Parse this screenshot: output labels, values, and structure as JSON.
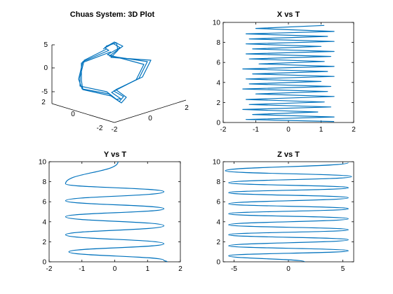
{
  "colors": {
    "series": "#0072BD",
    "axis": "#000000",
    "background": "#ffffff"
  },
  "chart_data": [
    {
      "type": "line3d",
      "title": "Chuas System: 3D Plot",
      "grid": false,
      "x_ticks": [
        "-2",
        "0",
        "2"
      ],
      "y_ticks": [
        "2",
        "0",
        "-2"
      ],
      "z_ticks": [
        "5",
        "0",
        "-5"
      ],
      "trajectory_note_xyz": [
        [
          1.4,
          -1.2,
          5.6
        ],
        [
          0.9,
          -1.5,
          5.0
        ],
        [
          -0.3,
          -0.2,
          5.4
        ],
        [
          0.3,
          1.3,
          2.5
        ],
        [
          0.6,
          2.2,
          -0.5
        ],
        [
          1.3,
          -0.4,
          -4.6
        ],
        [
          1.7,
          -2.0,
          -5.0
        ],
        [
          2.1,
          -1.8,
          -4.2
        ],
        [
          0.6,
          -2.4,
          -0.5
        ],
        [
          -0.3,
          -1.4,
          0.6
        ],
        [
          1.4,
          -1.2,
          5.6
        ]
      ]
    },
    {
      "type": "line",
      "title": "X vs T",
      "xlim": [
        -2,
        2
      ],
      "ylim": [
        0,
        10
      ],
      "x_ticks": [
        "-2",
        "-1",
        "0",
        "1",
        "2"
      ],
      "y_ticks": [
        "0",
        "2",
        "4",
        "6",
        "8",
        "10"
      ],
      "series": [
        {
          "x": [
            1.4,
            -1.3,
            1.4,
            -1.1,
            0.9,
            -1.4,
            1.3,
            -1.2,
            1.1,
            -1.3,
            1.4,
            -1.0,
            1.2,
            -1.4,
            1.3,
            -1.2,
            1.0,
            -1.3,
            1.4,
            -1.1,
            1.2,
            -1.4,
            1.4,
            -0.9,
            1.1,
            -1.2,
            1.3,
            -1.3,
            1.4,
            -1.1,
            1.0,
            -1.3,
            1.4,
            -1.2,
            1.2,
            -1.3,
            1.4,
            -1.0,
            1.1
          ],
          "y": [
            0.1,
            0.3,
            0.55,
            0.8,
            1.05,
            1.3,
            1.55,
            1.8,
            2.05,
            2.3,
            2.6,
            2.85,
            3.1,
            3.35,
            3.6,
            3.85,
            4.1,
            4.35,
            4.6,
            4.85,
            5.1,
            5.35,
            5.6,
            5.85,
            6.1,
            6.35,
            6.6,
            6.85,
            7.1,
            7.35,
            7.6,
            7.85,
            8.1,
            8.35,
            8.6,
            8.85,
            9.1,
            9.4,
            9.7
          ]
        }
      ]
    },
    {
      "type": "line",
      "title": "Y vs T",
      "xlim": [
        -2,
        2
      ],
      "ylim": [
        0,
        10
      ],
      "x_ticks": [
        "-2",
        "-1",
        "0",
        "1",
        "2"
      ],
      "y_ticks": [
        "0",
        "2",
        "4",
        "6",
        "8",
        "10"
      ],
      "series": [
        {
          "x": [
            1.6,
            1.5,
            -1.4,
            1.5,
            -1.5,
            1.5,
            -1.5,
            1.5,
            -1.5,
            1.5,
            -1.5,
            0.1
          ],
          "y": [
            0.0,
            0.15,
            1.0,
            1.8,
            2.7,
            3.6,
            4.5,
            5.3,
            6.1,
            7.0,
            7.8,
            10.0
          ]
        }
      ]
    },
    {
      "type": "line",
      "title": "Z vs T",
      "xlim": [
        -6,
        6
      ],
      "ylim": [
        0,
        10
      ],
      "x_ticks": [
        "-5",
        "0",
        "5"
      ],
      "y_ticks": [
        "0",
        "2",
        "4",
        "6",
        "8",
        "10"
      ],
      "series": [
        {
          "x": [
            1.5,
            -5.5,
            5.5,
            -5.5,
            5.5,
            -5.5,
            5.5,
            -5.5,
            5.5,
            -5.5,
            5.5,
            -5.5,
            5.5,
            -5.5,
            5.5,
            -5.5,
            5.8,
            -5.8,
            5.5
          ],
          "y": [
            0.0,
            0.6,
            1.1,
            1.6,
            2.2,
            2.7,
            3.2,
            3.7,
            4.3,
            4.8,
            5.3,
            5.8,
            6.4,
            6.9,
            7.4,
            7.9,
            8.5,
            9.1,
            9.9
          ]
        }
      ]
    }
  ]
}
